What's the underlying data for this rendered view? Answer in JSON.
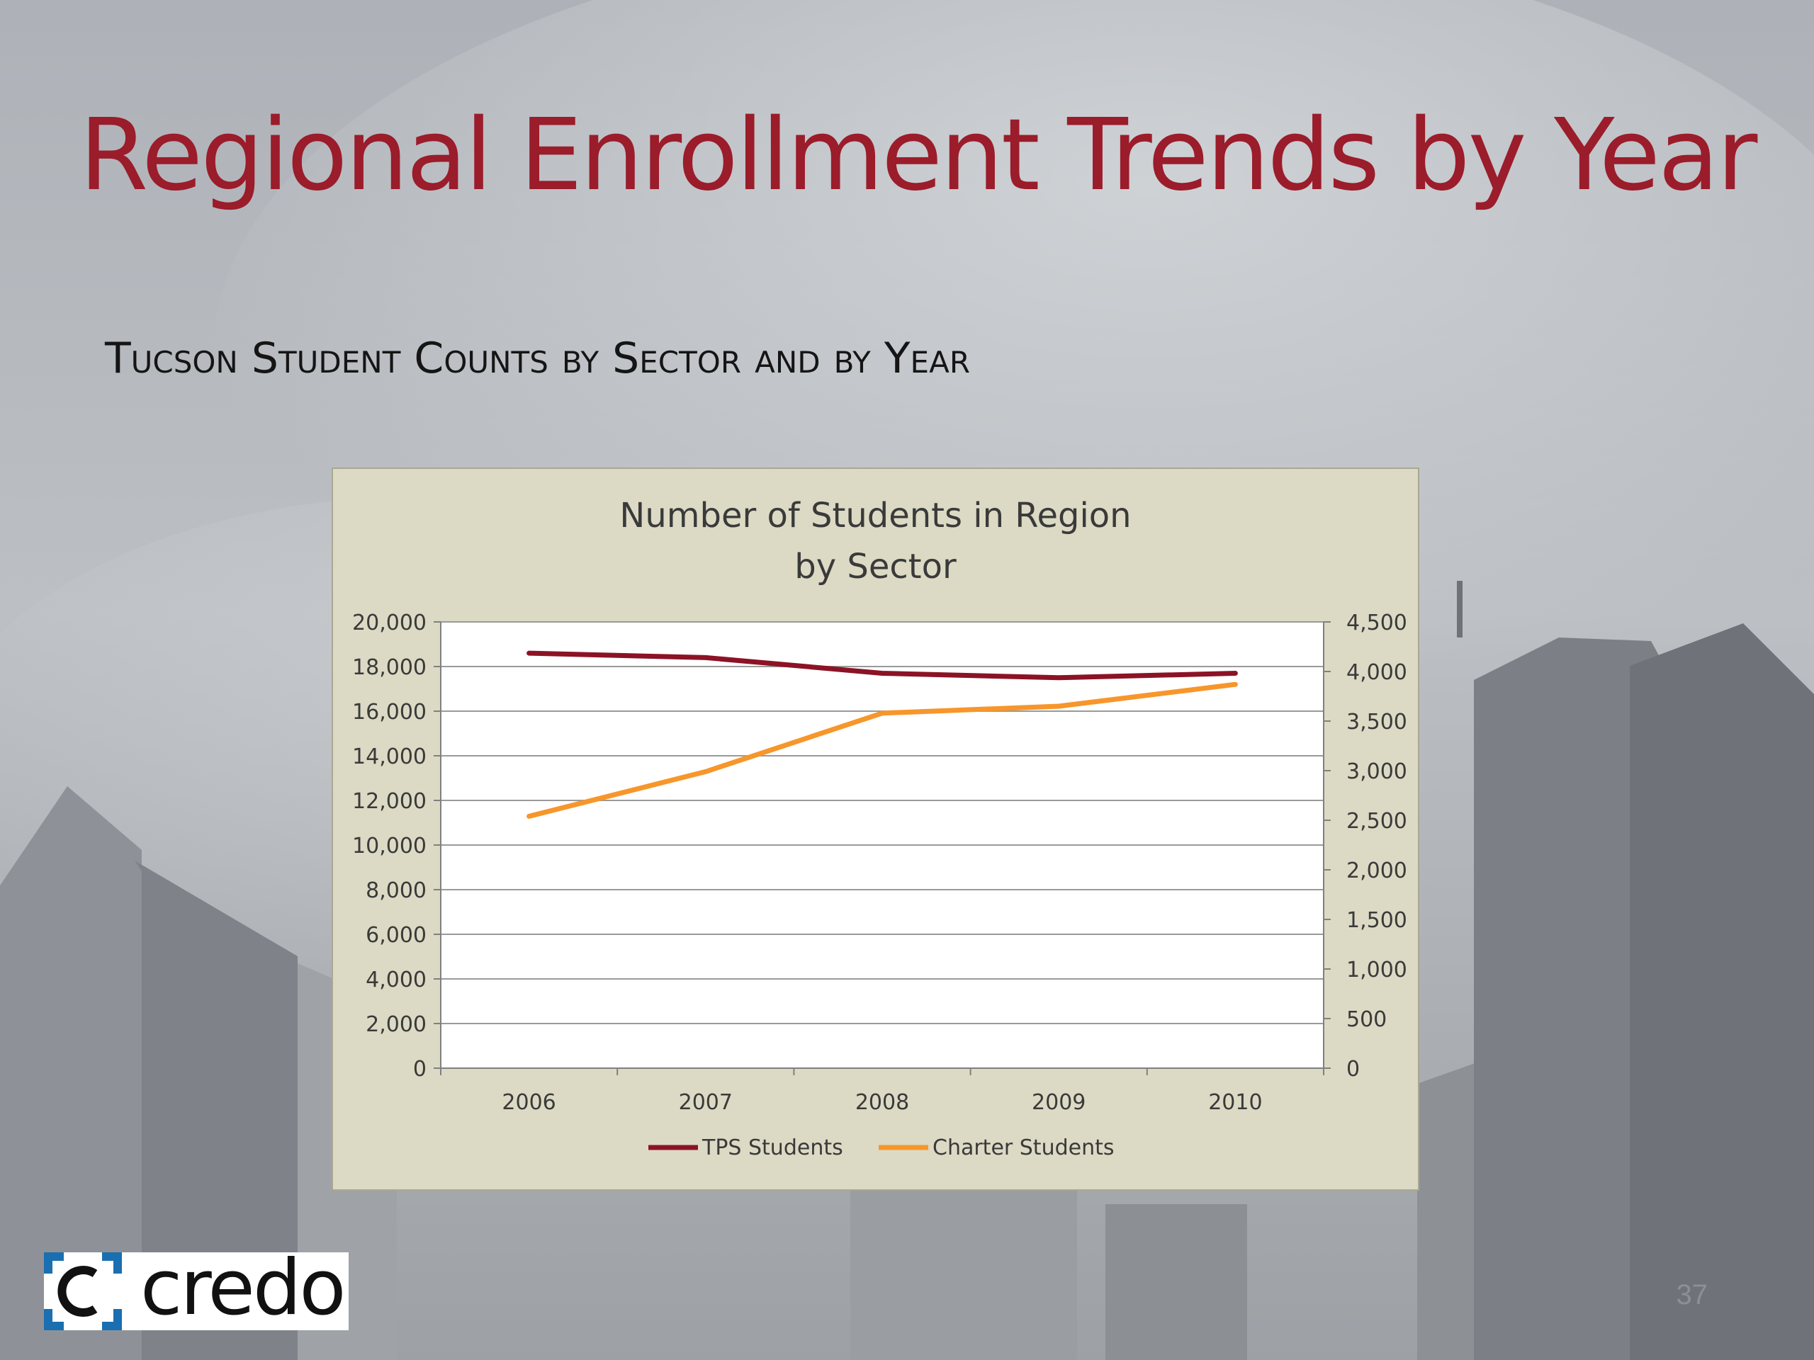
{
  "slide": {
    "title": "Regional Enrollment Trends by Year",
    "subtitle": "Tucson Student Counts by Sector and by Year",
    "page_number": "37",
    "logo_text": "credo"
  },
  "colors": {
    "title": "#9b1c2a",
    "chart_background": "#dcdac4",
    "tps_series": "#8b1325",
    "charter_series": "#f7962a",
    "logo_bracket": "#1a6fb0"
  },
  "chart_data": {
    "type": "line",
    "title_lines": [
      "Number of Students in Region",
      "by Sector"
    ],
    "categories": [
      "2006",
      "2007",
      "2008",
      "2009",
      "2010"
    ],
    "y_left": {
      "ylim": [
        0,
        20000
      ],
      "ticks": [
        "0",
        "2,000",
        "4,000",
        "6,000",
        "8,000",
        "10,000",
        "12,000",
        "14,000",
        "16,000",
        "18,000",
        "20,000"
      ]
    },
    "y_right": {
      "ylim": [
        0,
        4500
      ],
      "ticks": [
        "0",
        "500",
        "1,000",
        "1,500",
        "2,000",
        "2,500",
        "3,000",
        "3,500",
        "4,000",
        "4,500"
      ]
    },
    "grid": true,
    "legend_position": "bottom",
    "series": [
      {
        "name": "TPS Students",
        "axis": "left",
        "values": [
          18600,
          18400,
          17700,
          17500,
          17700
        ]
      },
      {
        "name": "Charter Students",
        "axis": "right",
        "values": [
          2540,
          2990,
          3580,
          3650,
          3870
        ]
      }
    ]
  }
}
